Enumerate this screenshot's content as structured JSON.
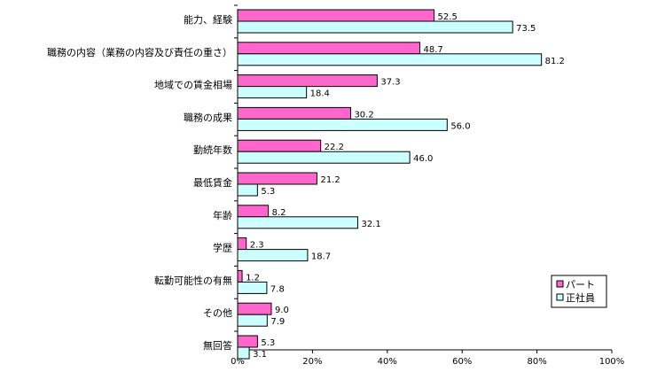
{
  "chart_data": {
    "type": "bar",
    "orientation": "horizontal",
    "categories": [
      "能力、経験",
      "職務の内容（業務の内容及び責任の重さ）",
      "地域での賃金相場",
      "職務の成果",
      "勤続年数",
      "最低賃金",
      "年齢",
      "学歴",
      "転勤可能性の有無",
      "その他",
      "無回答"
    ],
    "series": [
      {
        "name": "パート",
        "color": "#ff66cc",
        "values": [
          52.5,
          48.7,
          37.3,
          30.2,
          22.2,
          21.2,
          8.2,
          2.3,
          1.2,
          9.0,
          5.3
        ]
      },
      {
        "name": "正社員",
        "color": "#ccffff",
        "values": [
          73.5,
          81.2,
          18.4,
          56.0,
          46.0,
          5.3,
          32.1,
          18.7,
          7.8,
          7.9,
          3.1
        ]
      }
    ],
    "value_labels": [
      [
        "52.5",
        "48.7",
        "37.3",
        "30.2",
        "22.2",
        "21.2",
        "8.2",
        "2.3",
        "1.2",
        "9.0",
        "5.3"
      ],
      [
        "73.5",
        "81.2",
        "18.4",
        "56.0",
        "46.0",
        "5.3",
        "32.1",
        "18.7",
        "7.8",
        "7.9",
        "3.1"
      ]
    ],
    "xlim": [
      0,
      100
    ],
    "xticks": [
      "0%",
      "20%",
      "40%",
      "60%",
      "80%",
      "100%"
    ],
    "grid": false,
    "legend_position": "bottom-right",
    "title": "",
    "xlabel": "",
    "ylabel": ""
  }
}
